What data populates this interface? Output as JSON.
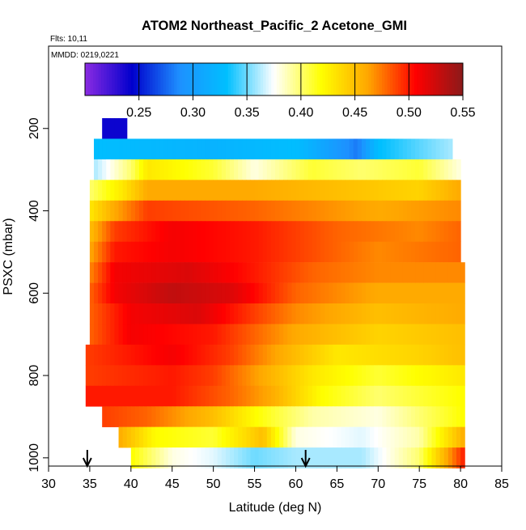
{
  "chart_data": {
    "type": "heatmap",
    "title": "ATOM2 Northeast_Pacific_2 Acetone_GMI",
    "annotations": [
      "Flts: 10,11",
      "MMDD: 0219,0221"
    ],
    "xlabel": "Latitude (deg N)",
    "ylabel": "PSXC (mbar)",
    "xlim": [
      30,
      85
    ],
    "ylim": [
      1020,
      0
    ],
    "xticks": [
      30,
      35,
      40,
      45,
      50,
      55,
      60,
      65,
      70,
      75,
      80,
      85
    ],
    "yticks": [
      200,
      400,
      600,
      800,
      1000
    ],
    "colorbar": {
      "range": [
        0.2,
        0.55
      ],
      "ticks": [
        0.25,
        0.3,
        0.35,
        0.4,
        0.45,
        0.5,
        0.55
      ],
      "tick_labels": [
        "0.25",
        "0.30",
        "0.35",
        "0.40",
        "0.45",
        "0.50",
        "0.55"
      ],
      "colors": [
        "#8b2be2",
        "#0000cd",
        "#1e90ff",
        "#00bfff",
        "#ffffff",
        "#ffff00",
        "#ffa500",
        "#ff0000",
        "#8b1a1a"
      ]
    },
    "arrows_at_latitude": [
      34.7,
      61.2
    ],
    "rows": [
      {
        "p": 200,
        "lat_min": 36.5,
        "lat_max": 39.5,
        "values": [
          [
            36.5,
            0.24
          ],
          [
            39.5,
            0.24
          ]
        ]
      },
      {
        "p": 250,
        "lat_min": 35.5,
        "lat_max": 79.0,
        "values": [
          [
            35.5,
            0.33
          ],
          [
            50,
            0.32
          ],
          [
            60,
            0.33
          ],
          [
            67.5,
            0.28
          ],
          [
            70,
            0.33
          ],
          [
            79,
            0.36
          ]
        ]
      },
      {
        "p": 300,
        "lat_min": 35.5,
        "lat_max": 80.0,
        "values": [
          [
            35.5,
            0.36
          ],
          [
            40,
            0.4
          ],
          [
            42,
            0.43
          ],
          [
            50,
            0.41
          ],
          [
            55,
            0.38
          ],
          [
            62,
            0.41
          ],
          [
            68,
            0.4
          ],
          [
            75,
            0.41
          ],
          [
            80,
            0.38
          ]
        ]
      },
      {
        "p": 350,
        "lat_min": 35.0,
        "lat_max": 80.0,
        "values": [
          [
            35,
            0.4
          ],
          [
            39,
            0.43
          ],
          [
            42,
            0.46
          ],
          [
            55,
            0.46
          ],
          [
            65,
            0.45
          ],
          [
            75,
            0.44
          ],
          [
            80,
            0.46
          ]
        ]
      },
      {
        "p": 400,
        "lat_min": 35.0,
        "lat_max": 80.0,
        "values": [
          [
            35,
            0.43
          ],
          [
            38,
            0.46
          ],
          [
            42,
            0.49
          ],
          [
            55,
            0.48
          ],
          [
            70,
            0.46
          ],
          [
            80,
            0.47
          ]
        ]
      },
      {
        "p": 450,
        "lat_min": 35.0,
        "lat_max": 80.0,
        "values": [
          [
            35,
            0.45
          ],
          [
            38,
            0.49
          ],
          [
            45,
            0.51
          ],
          [
            55,
            0.5
          ],
          [
            65,
            0.48
          ],
          [
            75,
            0.47
          ],
          [
            80,
            0.48
          ]
        ]
      },
      {
        "p": 500,
        "lat_min": 35.0,
        "lat_max": 80.0,
        "values": [
          [
            35,
            0.46
          ],
          [
            38,
            0.5
          ],
          [
            45,
            0.51
          ],
          [
            55,
            0.5
          ],
          [
            60,
            0.49
          ],
          [
            70,
            0.47
          ],
          [
            80,
            0.48
          ]
        ]
      },
      {
        "p": 550,
        "lat_min": 35.0,
        "lat_max": 80.5,
        "values": [
          [
            35,
            0.47
          ],
          [
            38,
            0.51
          ],
          [
            47,
            0.52
          ],
          [
            55,
            0.5
          ],
          [
            62,
            0.48
          ],
          [
            70,
            0.47
          ],
          [
            80.5,
            0.47
          ]
        ]
      },
      {
        "p": 600,
        "lat_min": 35.0,
        "lat_max": 80.5,
        "values": [
          [
            35,
            0.48
          ],
          [
            38,
            0.51
          ],
          [
            45,
            0.53
          ],
          [
            52,
            0.52
          ],
          [
            60,
            0.48
          ],
          [
            70,
            0.46
          ],
          [
            80.5,
            0.46
          ]
        ]
      },
      {
        "p": 650,
        "lat_min": 35.0,
        "lat_max": 80.5,
        "values": [
          [
            35,
            0.48
          ],
          [
            40,
            0.51
          ],
          [
            48,
            0.52
          ],
          [
            55,
            0.49
          ],
          [
            60,
            0.47
          ],
          [
            70,
            0.45
          ],
          [
            80.5,
            0.46
          ]
        ]
      },
      {
        "p": 700,
        "lat_min": 35.0,
        "lat_max": 80.5,
        "values": [
          [
            35,
            0.48
          ],
          [
            40,
            0.51
          ],
          [
            50,
            0.5
          ],
          [
            55,
            0.48
          ],
          [
            60,
            0.46
          ],
          [
            70,
            0.44
          ],
          [
            80.5,
            0.45
          ]
        ]
      },
      {
        "p": 750,
        "lat_min": 34.5,
        "lat_max": 80.5,
        "values": [
          [
            34.5,
            0.49
          ],
          [
            45,
            0.51
          ],
          [
            52,
            0.49
          ],
          [
            58,
            0.46
          ],
          [
            65,
            0.43
          ],
          [
            75,
            0.44
          ],
          [
            80.5,
            0.45
          ]
        ]
      },
      {
        "p": 800,
        "lat_min": 34.5,
        "lat_max": 80.5,
        "values": [
          [
            34.5,
            0.49
          ],
          [
            45,
            0.5
          ],
          [
            50,
            0.49
          ],
          [
            56,
            0.46
          ],
          [
            62,
            0.43
          ],
          [
            70,
            0.41
          ],
          [
            80.5,
            0.43
          ]
        ]
      },
      {
        "p": 850,
        "lat_min": 34.5,
        "lat_max": 80.5,
        "values": [
          [
            34.5,
            0.5
          ],
          [
            45,
            0.5
          ],
          [
            52,
            0.48
          ],
          [
            57,
            0.46
          ],
          [
            63,
            0.42
          ],
          [
            70,
            0.4
          ],
          [
            80.5,
            0.42
          ]
        ]
      },
      {
        "p": 900,
        "lat_min": 36.5,
        "lat_max": 80.5,
        "values": [
          [
            36.5,
            0.49
          ],
          [
            42,
            0.48
          ],
          [
            50,
            0.45
          ],
          [
            55,
            0.42
          ],
          [
            62,
            0.39
          ],
          [
            70,
            0.38
          ],
          [
            80.5,
            0.42
          ]
        ]
      },
      {
        "p": 950,
        "lat_min": 38.5,
        "lat_max": 80.5,
        "values": [
          [
            38.5,
            0.46
          ],
          [
            43,
            0.42
          ],
          [
            50,
            0.41
          ],
          [
            56,
            0.45
          ],
          [
            60,
            0.38
          ],
          [
            68,
            0.37
          ],
          [
            75,
            0.39
          ],
          [
            80.5,
            0.46
          ]
        ]
      },
      {
        "p": 1000,
        "lat_min": 40.0,
        "lat_max": 80.5,
        "values": [
          [
            40,
            0.42
          ],
          [
            45,
            0.38
          ],
          [
            50,
            0.37
          ],
          [
            55,
            0.35
          ],
          [
            60,
            0.36
          ],
          [
            68,
            0.36
          ],
          [
            75,
            0.4
          ],
          [
            80.5,
            0.5
          ]
        ]
      }
    ]
  }
}
